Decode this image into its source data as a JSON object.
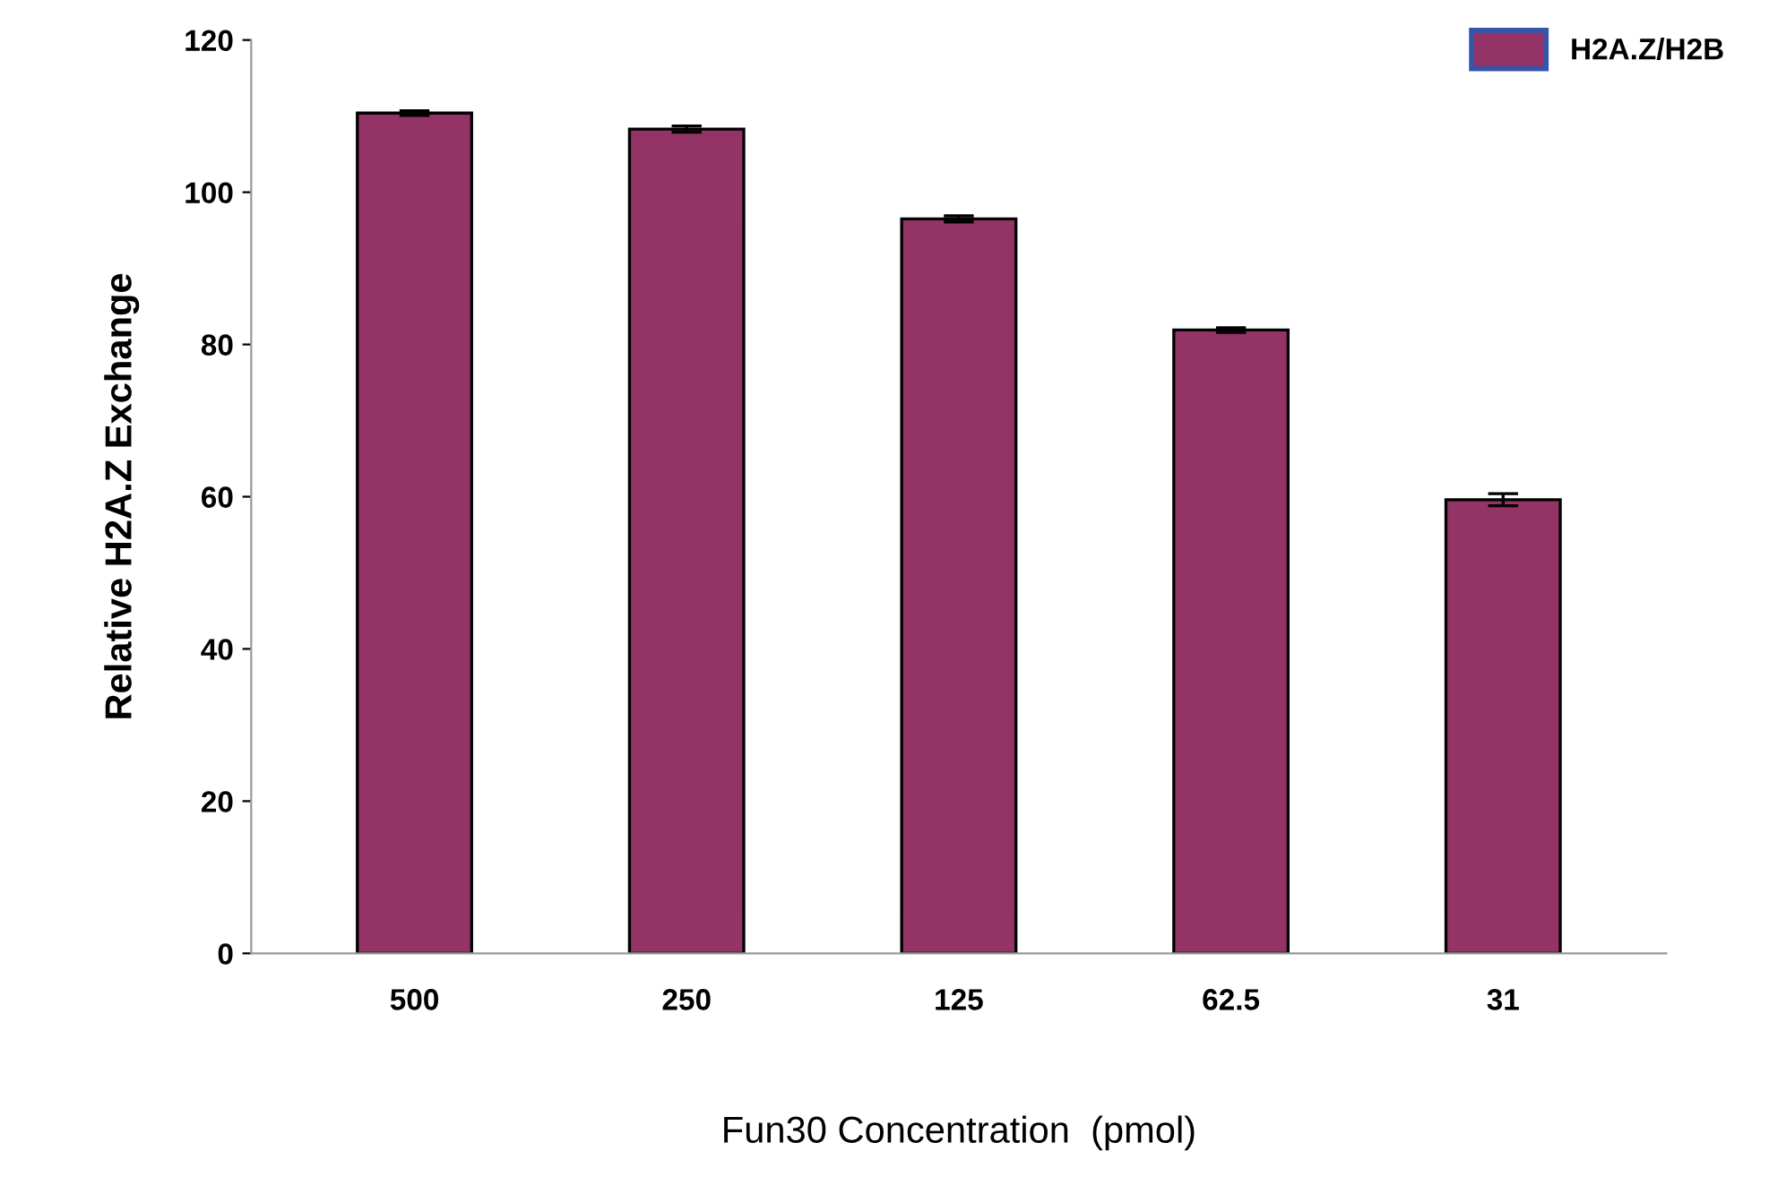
{
  "chart_data": {
    "type": "bar",
    "xlabel": "Fun30 Concentration  (pmol)",
    "ylabel": "Relative H2A.Z Exchange",
    "categories": [
      "500",
      "250",
      "125",
      "62.5",
      "31"
    ],
    "series": [
      {
        "name": "H2A.Z/H2B",
        "color": "#943366",
        "values": [
          110.4,
          108.3,
          96.5,
          81.9,
          59.6
        ],
        "errors": [
          0.3,
          0.4,
          0.4,
          0.3,
          0.8
        ]
      }
    ],
    "ylim": [
      0,
      120
    ],
    "yticks": [
      0,
      20,
      40,
      60,
      80,
      100,
      120
    ],
    "grid": false,
    "legend": "top right"
  }
}
